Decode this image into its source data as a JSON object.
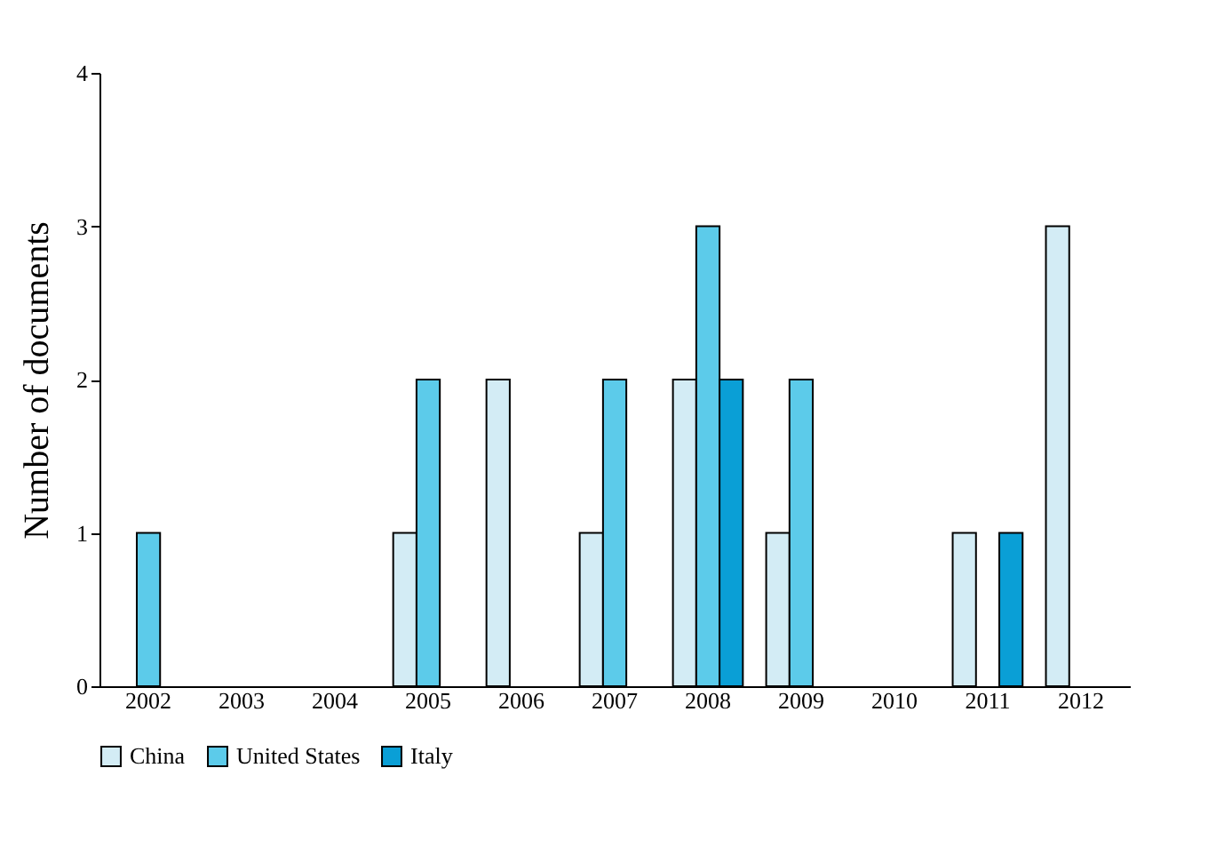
{
  "chart_data": {
    "type": "bar",
    "ylabel": "Number of documents",
    "categories": [
      "2002",
      "2003",
      "2004",
      "2005",
      "2006",
      "2007",
      "2008",
      "2009",
      "2010",
      "2011",
      "2012"
    ],
    "series": [
      {
        "name": "China",
        "color": "#d3ecf5",
        "values": [
          0,
          0,
          0,
          1,
          2,
          1,
          2,
          1,
          0,
          1,
          3
        ]
      },
      {
        "name": "United States",
        "color": "#5ccbea",
        "values": [
          1,
          0,
          0,
          2,
          0,
          2,
          3,
          2,
          0,
          0,
          0
        ]
      },
      {
        "name": "Italy",
        "color": "#0a9fd6",
        "values": [
          0,
          0,
          0,
          0,
          0,
          0,
          2,
          0,
          0,
          1,
          0
        ]
      }
    ],
    "ylim": [
      0,
      4
    ],
    "yticks": [
      0,
      1,
      2,
      3,
      4
    ],
    "grid": false,
    "legend": "bottom"
  }
}
